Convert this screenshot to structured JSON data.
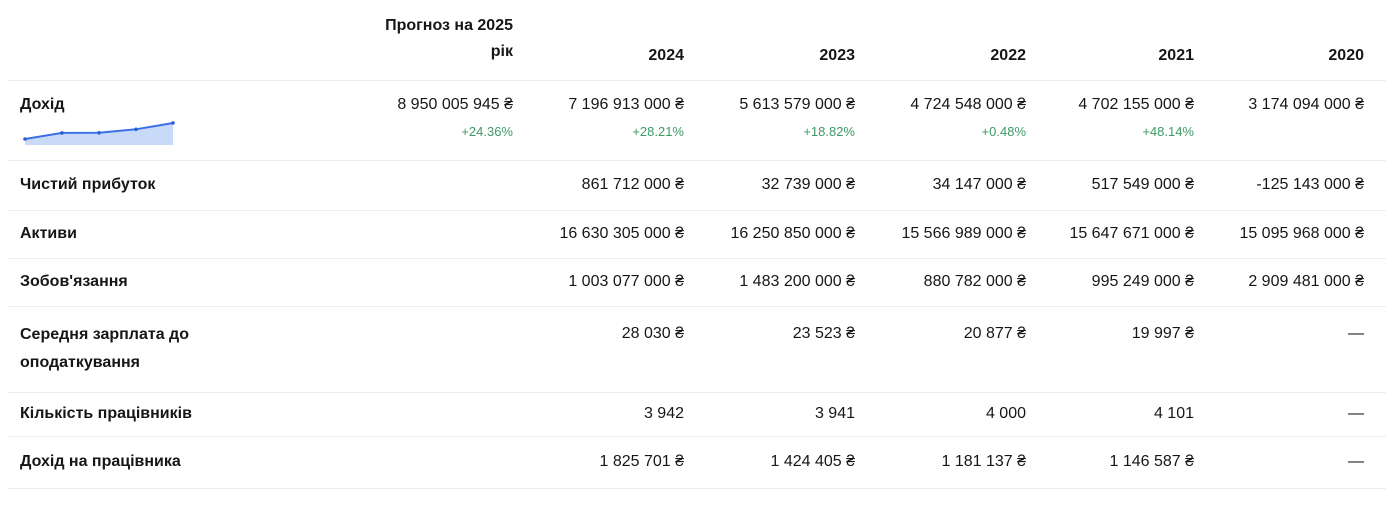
{
  "table": {
    "header": {
      "forecast_line1": "Прогноз на 2025",
      "forecast_line2": "рік",
      "years": [
        "2024",
        "2023",
        "2022",
        "2021",
        "2020"
      ]
    },
    "rows": [
      {
        "label": "Дохід",
        "values": [
          "8 950 005 945 ₴",
          "7 196 913 000 ₴",
          "5 613 579 000 ₴",
          "4 724 548 000 ₴",
          "4 702 155 000 ₴",
          "3 174 094 000 ₴"
        ],
        "deltas": [
          "+24.36%",
          "+28.21%",
          "+18.82%",
          "+0.48%",
          "+48.14%",
          ""
        ]
      },
      {
        "label": "Чистий прибуток",
        "values": [
          "",
          "861 712 000 ₴",
          "32 739 000 ₴",
          "34 147 000 ₴",
          "517 549 000 ₴",
          "-125 143 000 ₴"
        ]
      },
      {
        "label": "Активи",
        "values": [
          "",
          "16 630 305 000 ₴",
          "16 250 850 000 ₴",
          "15 566 989 000 ₴",
          "15 647 671 000 ₴",
          "15 095 968 000 ₴"
        ]
      },
      {
        "label": "Зобов'язання",
        "values": [
          "",
          "1 003 077 000 ₴",
          "1 483 200 000 ₴",
          "880 782 000 ₴",
          "995 249 000 ₴",
          "2 909 481 000 ₴"
        ]
      },
      {
        "label": "Середня зарплата до оподаткування",
        "values": [
          "",
          "28 030 ₴",
          "23 523 ₴",
          "20 877 ₴",
          "19 997 ₴",
          "—"
        ]
      },
      {
        "label": "Кількість працівників",
        "values": [
          "",
          "3 942",
          "3 941",
          "4 000",
          "4 101",
          "—"
        ]
      },
      {
        "label": "Дохід на працівника",
        "values": [
          "",
          "1 825 701 ₴",
          "1 424 405 ₴",
          "1 181 137 ₴",
          "1 146 587 ₴",
          "—"
        ]
      }
    ]
  },
  "chart_data": {
    "type": "line",
    "name": "revenue-sparkline",
    "x": [
      "2020",
      "2021",
      "2022",
      "2023",
      "2024"
    ],
    "values": [
      3174094000,
      4702155000,
      4724548000,
      5613579000,
      7196913000
    ],
    "line_color": "#3c70e5",
    "dot_color": "#2b5fd6",
    "fill_color": "#c9d9f8"
  },
  "colors": {
    "positive_delta": "#3d9a64",
    "text": "#161616",
    "divider": "#ededed"
  }
}
